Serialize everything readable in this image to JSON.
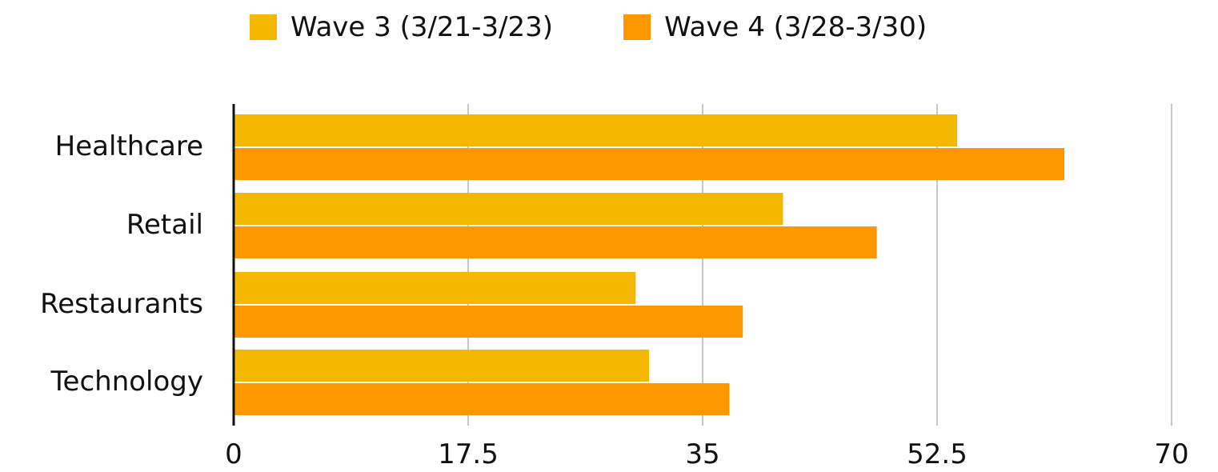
{
  "chart_data": {
    "type": "bar",
    "orientation": "horizontal",
    "categories": [
      "Healthcare",
      "Retail",
      "Restaurants",
      "Technology"
    ],
    "series": [
      {
        "name": "Wave 3 (3/21-3/23)",
        "color": "#F5B800",
        "values": [
          54.0,
          41.0,
          30.0,
          31.0
        ]
      },
      {
        "name": "Wave 4 (3/28-3/30)",
        "color": "#FF9800",
        "values": [
          62.0,
          48.0,
          38.0,
          37.0
        ]
      }
    ],
    "xlim": [
      0,
      70
    ],
    "x_ticks": [
      "0",
      "17.5",
      "35",
      "52.5",
      "70"
    ],
    "grid": true,
    "legend_position": "top"
  }
}
